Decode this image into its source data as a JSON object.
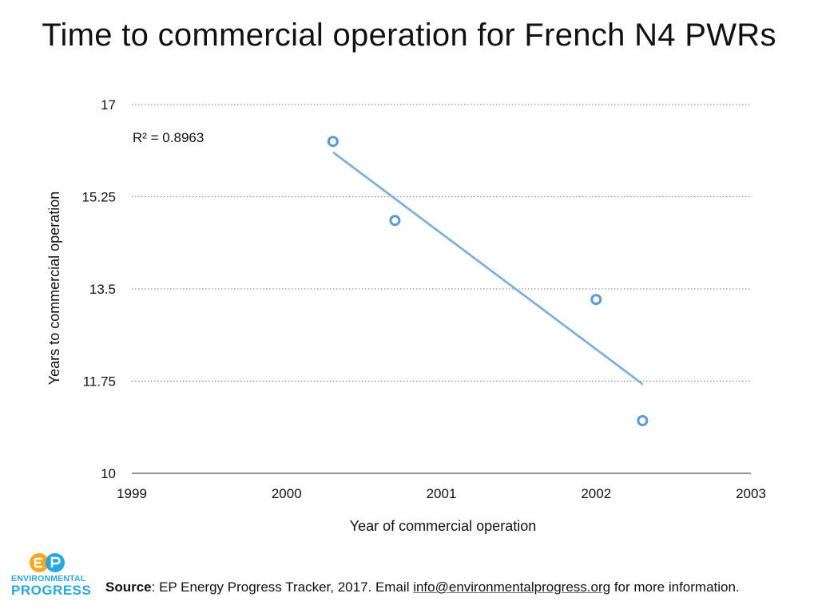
{
  "chart_data": {
    "type": "scatter",
    "title": "Time to commercial operation for French N4 PWRs",
    "xlabel": "Year of commercial operation",
    "ylabel": "Years to commercial operation",
    "xlim": [
      1999,
      2003
    ],
    "ylim": [
      10,
      17
    ],
    "x_ticks": [
      "1999",
      "2000",
      "2001",
      "2002",
      "2003"
    ],
    "y_ticks": [
      "17",
      "15.25",
      "13.5",
      "11.75",
      "10"
    ],
    "y_tick_values": [
      17,
      15.25,
      13.5,
      11.75,
      10
    ],
    "x_tick_values": [
      1999,
      2000,
      2001,
      2002,
      2003
    ],
    "series": [
      {
        "name": "N4 PWRs",
        "points": [
          {
            "x": 2000.3,
            "y": 16.3
          },
          {
            "x": 2000.7,
            "y": 14.8
          },
          {
            "x": 2002.0,
            "y": 13.3
          },
          {
            "x": 2002.3,
            "y": 11.0
          }
        ]
      }
    ],
    "trendline": {
      "x0": 2000.3,
      "y0": 16.1,
      "x1": 2002.3,
      "y1": 11.7
    },
    "annotation": "R² = 0.8963",
    "grid": true,
    "colors": {
      "marker": "#5b9bd5",
      "trend": "#6aaae8",
      "grid": "#777777"
    }
  },
  "footer": {
    "source_label": "Source",
    "source_text": ": EP Energy Progress Tracker, 2017. Email ",
    "email": "info@environmentalprogress.org",
    "suffix": " for more information."
  },
  "logo": {
    "mark_text": "EP",
    "line1": "ENVIRONMENTAL",
    "line2": "PROGRESS",
    "colors": {
      "orange": "#f7a823",
      "blue": "#29a8e0"
    }
  }
}
